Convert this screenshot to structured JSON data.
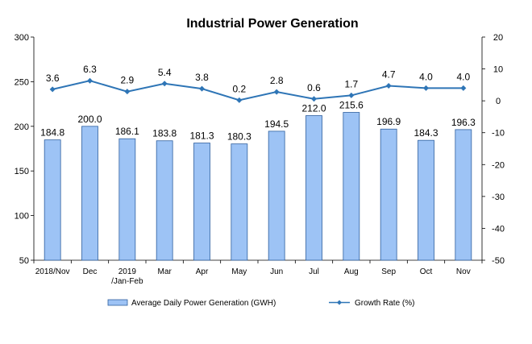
{
  "chart_data": {
    "type": "bar",
    "title": "Industrial Power Generation",
    "categories": [
      [
        "2018/Nov"
      ],
      [
        "Dec"
      ],
      [
        "2019",
        "/Jan-Feb"
      ],
      [
        "Mar"
      ],
      [
        "Apr"
      ],
      [
        "May"
      ],
      [
        "Jun"
      ],
      [
        "Jul"
      ],
      [
        "Aug"
      ],
      [
        "Sep"
      ],
      [
        "Oct"
      ],
      [
        "Nov"
      ]
    ],
    "series": [
      {
        "name": "Average Daily Power Generation (GWH)",
        "type": "bar",
        "axis": "left",
        "color": "#9dc3f5",
        "values": [
          184.8,
          200.0,
          186.1,
          183.8,
          181.3,
          180.3,
          194.5,
          212.0,
          215.6,
          196.9,
          184.3,
          196.3
        ],
        "labels": [
          "184.8",
          "200.0",
          "186.1",
          "183.8",
          "181.3",
          "180.3",
          "194.5",
          "212.0",
          "215.6",
          "196.9",
          "184.3",
          "196.3"
        ]
      },
      {
        "name": "Growth Rate (%)",
        "type": "line",
        "axis": "right",
        "color": "#2e75b6",
        "values": [
          3.6,
          6.3,
          2.9,
          5.4,
          3.8,
          0.2,
          2.8,
          0.6,
          1.7,
          4.7,
          4.0,
          4.0
        ],
        "labels": [
          "3.6",
          "6.3",
          "2.9",
          "5.4",
          "3.8",
          "0.2",
          "2.8",
          "0.6",
          "1.7",
          "4.7",
          "4.0",
          "4.0"
        ]
      }
    ],
    "y_left": {
      "min": 50,
      "max": 300,
      "ticks": [
        "50",
        "100",
        "150",
        "200",
        "250",
        "300"
      ]
    },
    "y_right": {
      "min": -50,
      "max": 20,
      "ticks": [
        "-50",
        "-40",
        "-30",
        "-20",
        "-10",
        "0",
        "10",
        "20"
      ]
    },
    "grid": false,
    "legend": "bottom"
  }
}
